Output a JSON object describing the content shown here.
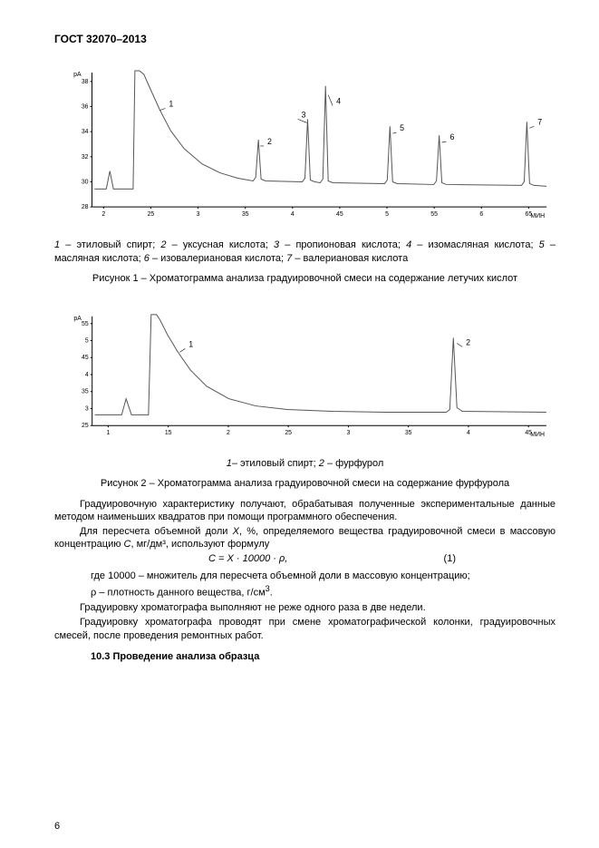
{
  "header": "ГОСТ 32070–2013",
  "page_number": "6",
  "chart1": {
    "y_label": "pA",
    "x_label": "МИН",
    "y_ticks": [
      "28",
      "30",
      "32",
      "34",
      "36",
      "38"
    ],
    "x_ticks": [
      "2",
      "25",
      "3",
      "35",
      "4",
      "45",
      "5",
      "55",
      "6",
      "65"
    ],
    "peak_labels": [
      "1",
      "2",
      "3",
      "4",
      "5",
      "6",
      "7"
    ],
    "stroke": "#555555",
    "axis_color": "#000000",
    "axis_width": 1,
    "tick_fontsize": 7,
    "label_fontsize": 7
  },
  "legend1_parts": [
    {
      "i": true,
      "t": "1"
    },
    {
      "i": false,
      "t": " – этиловый спирт;  "
    },
    {
      "i": true,
      "t": "2"
    },
    {
      "i": false,
      "t": " – уксусная кислота;  "
    },
    {
      "i": true,
      "t": "3"
    },
    {
      "i": false,
      "t": " – пропионовая кислота;   "
    },
    {
      "i": true,
      "t": "4"
    },
    {
      "i": false,
      "t": " – изомасляная кислота;  "
    },
    {
      "i": true,
      "t": "5"
    },
    {
      "i": false,
      "t": " – масляная кислота; "
    },
    {
      "i": true,
      "t": "6"
    },
    {
      "i": false,
      "t": " – изовалериановая кислота;      "
    },
    {
      "i": true,
      "t": "7"
    },
    {
      "i": false,
      "t": " – валериановая кислота"
    }
  ],
  "caption1": "Рисунок 1 – Хроматограмма  анализа градуировочной  смеси  на  содержание летучих кислот",
  "chart2": {
    "y_label": "pA",
    "x_label": "МИН",
    "y_ticks": [
      "25",
      "3",
      "35",
      "4",
      "45",
      "5",
      "55"
    ],
    "x_ticks": [
      "1",
      "15",
      "2",
      "25",
      "3",
      "35",
      "4",
      "45"
    ],
    "peak_labels": [
      "1",
      "2"
    ],
    "stroke": "#555555",
    "axis_color": "#000000",
    "tick_fontsize": 7,
    "label_fontsize": 7
  },
  "legend2_parts": [
    {
      "i": true,
      "t": "1"
    },
    {
      "i": false,
      "t": "–  этиловый спирт;  "
    },
    {
      "i": true,
      "t": "2"
    },
    {
      "i": false,
      "t": " – фурфурол"
    }
  ],
  "caption2": "Рисунок 2 – Хроматограмма  анализа градуировочной  смеси  на  содержание фурфурола",
  "para1": "Градуировочную характеристику получают, обрабатывая полученные экспериментальные данные методом наименьших квадратов при помощи программного обеспечения.",
  "para2_pre": "Для пересчета объемной доли ",
  "para2_var1": "X",
  "para2_mid": ", %, определяемого вещества  градуировочной смеси в массовую концентрацию ",
  "para2_var2": "С",
  "para2_unit": ", мг/дм³, используют формулу",
  "formula": "С = Х · 10000 · ρ,",
  "formula_num": "(1)",
  "where_line1": "где 10000 – множитель для пересчета объемной доли в массовую концентрацию;",
  "where_line2_pre": "ρ – плотность данного вещества, г/см",
  "where_line2_sup": "3",
  "where_line2_post": ".",
  "para3": "Градуировку хроматографа выполняют не реже одного раза в две недели.",
  "para4": "Градуировку хроматографа проводят при смене хроматографической колонки, градуировочных смесей, после проведения ремонтных работ.",
  "section": "10.3 Проведение анализа образца"
}
